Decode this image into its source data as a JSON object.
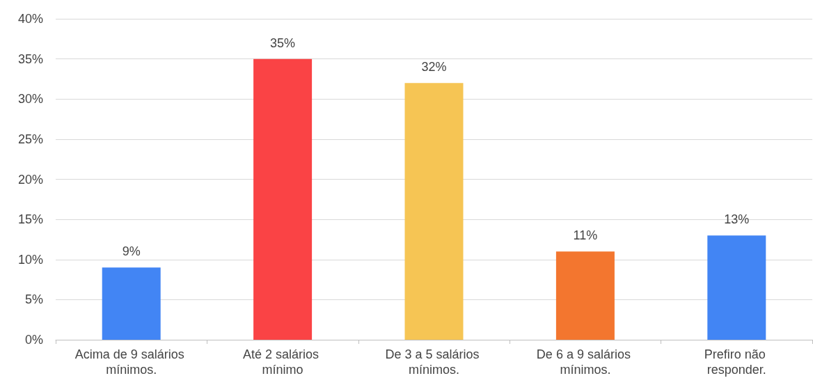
{
  "chart_data": {
    "type": "bar",
    "categories": [
      "Acima de 9 salários mínimos.",
      "Até 2 salários mínimo",
      "De 3 a 5 salários mínimos.",
      "De 6 a 9 salários mínimos.",
      "Prefiro não responder."
    ],
    "values": [
      9,
      35,
      32,
      11,
      13
    ],
    "value_labels": [
      "9%",
      "35%",
      "32%",
      "11%",
      "13%"
    ],
    "colors": [
      "#4285f4",
      "#fa4345",
      "#f6c554",
      "#f3762f",
      "#4285f4"
    ],
    "ylim": [
      0,
      40
    ],
    "yticks": [
      {
        "value": 0,
        "label": "0%"
      },
      {
        "value": 5,
        "label": "5%"
      },
      {
        "value": 10,
        "label": "10%"
      },
      {
        "value": 15,
        "label": "15%"
      },
      {
        "value": 20,
        "label": "20%"
      },
      {
        "value": 25,
        "label": "25%"
      },
      {
        "value": 30,
        "label": "30%"
      },
      {
        "value": 35,
        "label": "35%"
      },
      {
        "value": 40,
        "label": "40%"
      }
    ],
    "grid": "y"
  }
}
